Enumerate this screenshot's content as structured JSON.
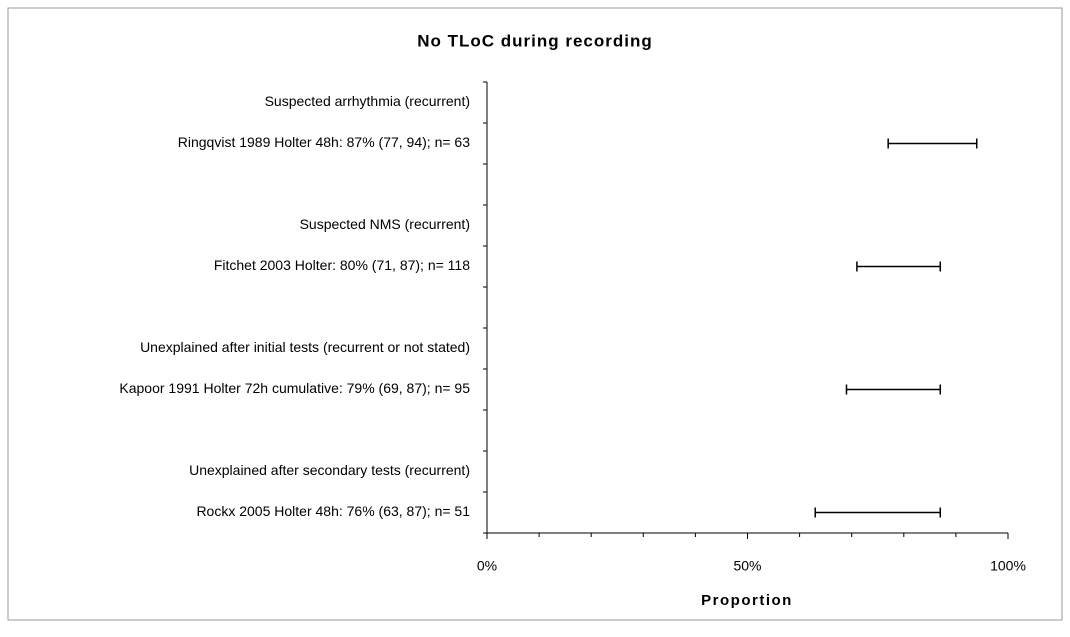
{
  "chart_data": {
    "type": "forest",
    "title": "No TLoC during recording",
    "x_label": "Proportion",
    "categories": [
      "Suspected arrhythmia (recurrent)",
      "Ringqvist 1989 Holter 48h: 87% (77, 94); n= 63",
      null,
      "Suspected NMS (recurrent)",
      "Fitchet 2003 Holter: 80% (71, 87); n= 118",
      null,
      "Unexplained after initial tests (recurrent or not stated)",
      "Kapoor 1991 Holter 72h cumulative: 79% (69, 87); n= 95",
      null,
      "Unexplained after secondary tests (recurrent)",
      "Rockx 2005 Holter 48h: 76% (63, 87); n= 51"
    ],
    "lower": [
      null,
      77,
      null,
      null,
      71,
      null,
      null,
      69,
      null,
      null,
      63
    ],
    "upper": [
      null,
      94,
      null,
      null,
      87,
      null,
      null,
      87,
      null,
      null,
      87
    ],
    "color": "#000000",
    "xlim": [
      0,
      100
    ],
    "xticks": [
      {
        "value": 0,
        "label": "0%"
      },
      {
        "value": 50,
        "label": "50%"
      },
      {
        "value": 100,
        "label": "100%"
      }
    ],
    "xminorticks": [
      10,
      20,
      30,
      40,
      60,
      70,
      80,
      90
    ]
  }
}
